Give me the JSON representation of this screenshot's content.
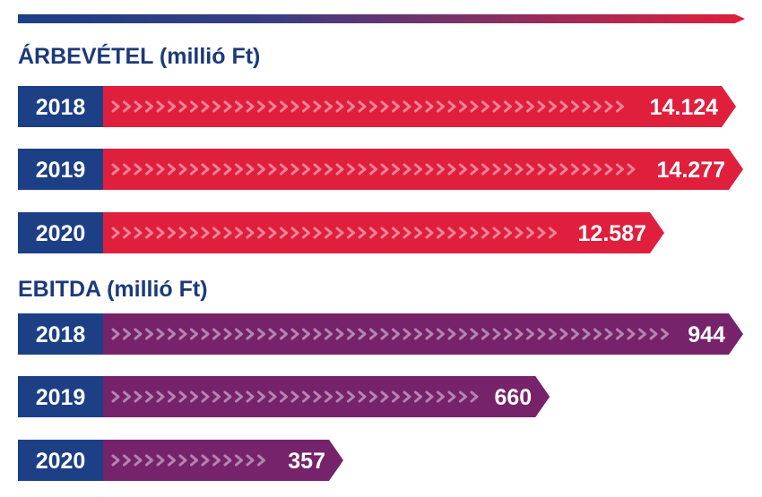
{
  "chart_data": [
    {
      "type": "bar",
      "orientation": "horizontal",
      "title": "ÁRBEVÉTEL (millió Ft)",
      "categories": [
        "2018",
        "2019",
        "2020"
      ],
      "values": [
        14124,
        14277,
        12587
      ],
      "value_labels": [
        "14.124",
        "14.277",
        "12.587"
      ],
      "xlim": [
        0,
        14277
      ],
      "grid": false,
      "bar_color": "#e01f3d",
      "category_box_color": "#1c3f86"
    },
    {
      "type": "bar",
      "orientation": "horizontal",
      "title": "EBITDA (millió Ft)",
      "categories": [
        "2018",
        "2019",
        "2020"
      ],
      "values": [
        944,
        660,
        357
      ],
      "value_labels": [
        "944",
        "660",
        "357"
      ],
      "xlim": [
        0,
        944
      ],
      "grid": false,
      "bar_color": "#76236b",
      "category_box_color": "#1c3f86"
    }
  ],
  "colors": {
    "title": "#1c3a7a",
    "top_arrow_start": "#1c3f86",
    "top_arrow_end": "#e01f3d"
  }
}
